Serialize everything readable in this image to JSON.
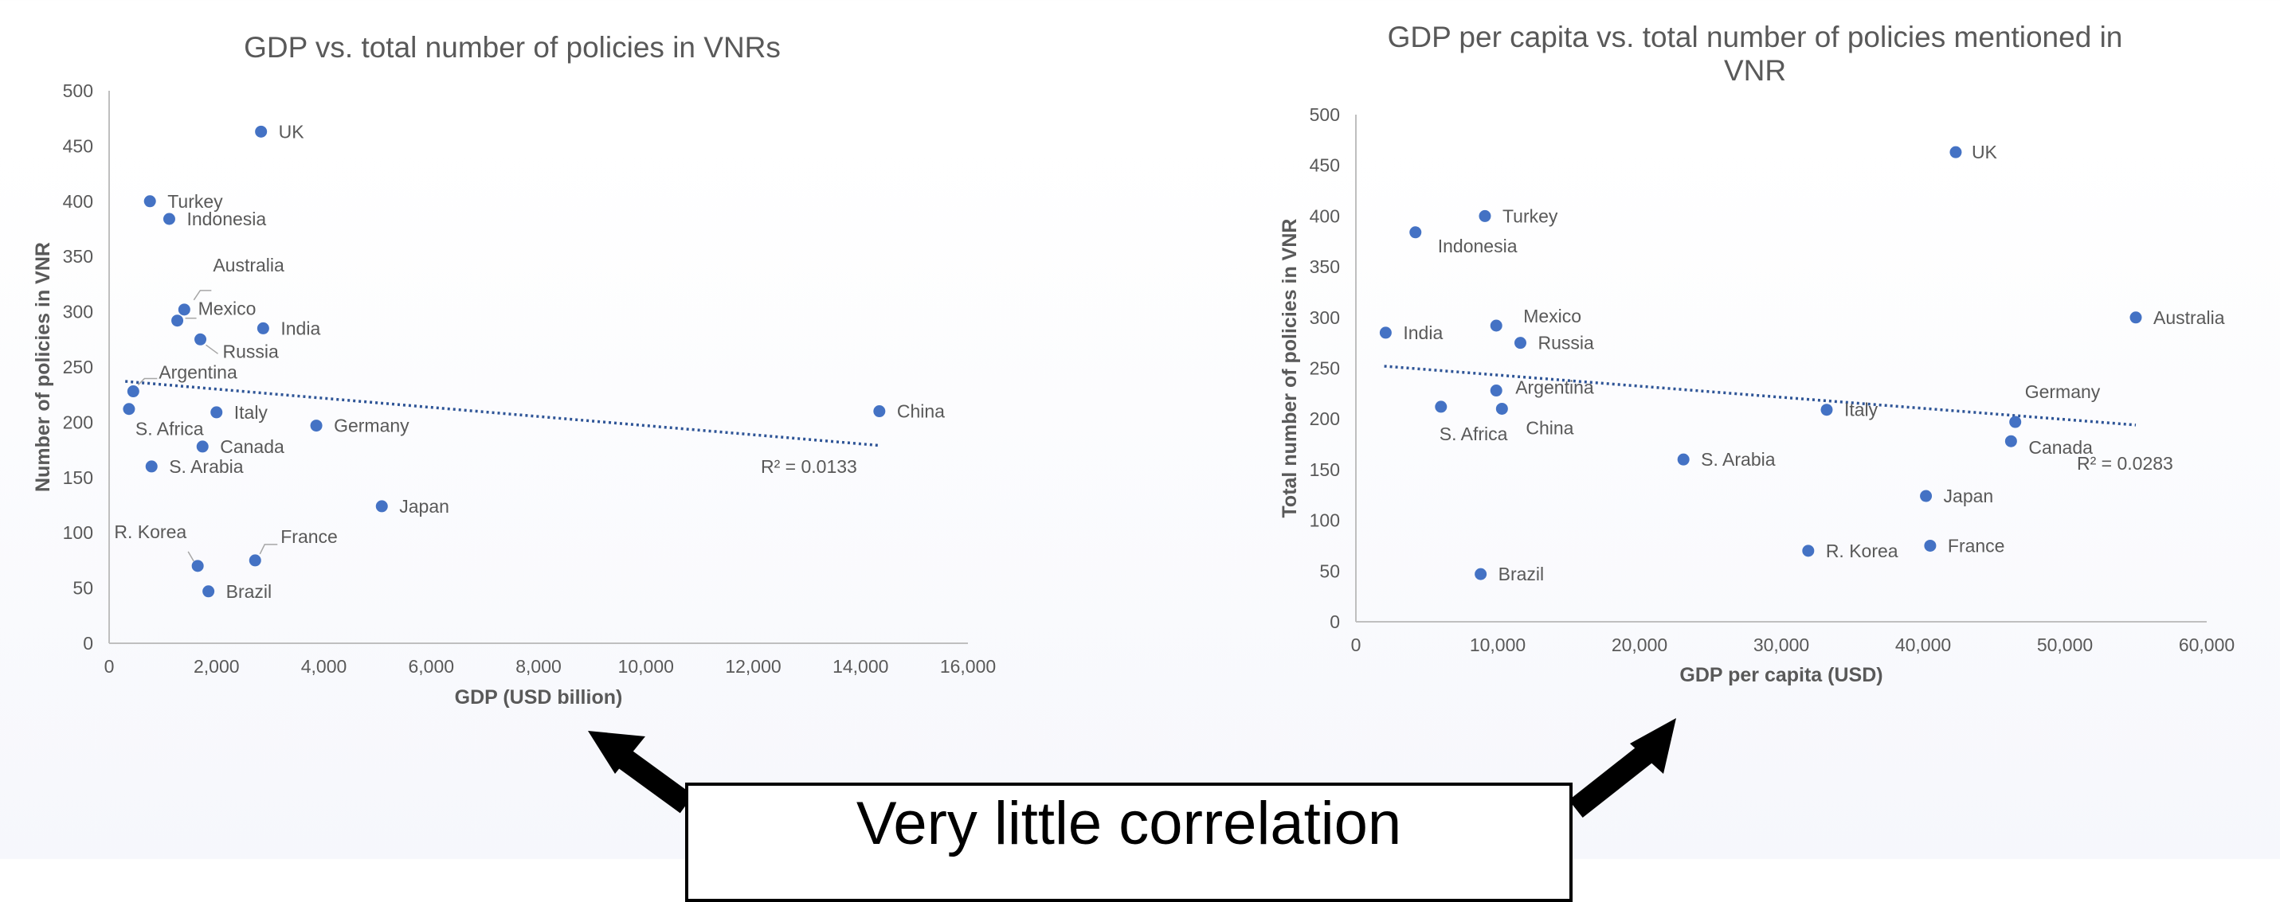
{
  "callout": {
    "text": "Very little correlation"
  },
  "colors": {
    "marker": "#4472C4",
    "trendline": "#2F5597",
    "text": "#595959",
    "axis": "#BFBFBF",
    "arrow": "#000000"
  },
  "chart_data": [
    {
      "type": "scatter",
      "title": "GDP vs. total number of policies in VNRs",
      "xlabel": "GDP (USD billion)",
      "ylabel": "Number of policies in VNR",
      "xlim": [
        0,
        16000
      ],
      "ylim": [
        0,
        500
      ],
      "xticks": [
        0,
        2000,
        4000,
        6000,
        8000,
        10000,
        12000,
        14000,
        16000
      ],
      "xtick_labels": [
        "0",
        "2,000",
        "4,000",
        "6,000",
        "8,000",
        "10,000",
        "12,000",
        "14,000",
        "16,000"
      ],
      "yticks": [
        0,
        50,
        100,
        150,
        200,
        250,
        300,
        350,
        400,
        450,
        500
      ],
      "ytick_labels": [
        "0",
        "50",
        "100",
        "150",
        "200",
        "250",
        "300",
        "350",
        "400",
        "450",
        "500"
      ],
      "grid": false,
      "legend": "none",
      "trendline": {
        "type": "linear",
        "x": [
          300,
          14350
        ],
        "y": [
          237,
          179
        ],
        "label": "R² = 0.0133",
        "style": "dotted"
      },
      "points": [
        {
          "label": "UK",
          "x": 2830,
          "y": 463
        },
        {
          "label": "Turkey",
          "x": 760,
          "y": 400
        },
        {
          "label": "Indonesia",
          "x": 1120,
          "y": 384
        },
        {
          "label": "Australia",
          "x": 1400,
          "y": 302
        },
        {
          "label": "Mexico",
          "x": 1270,
          "y": 292
        },
        {
          "label": "India",
          "x": 2870,
          "y": 285
        },
        {
          "label": "Russia",
          "x": 1700,
          "y": 275
        },
        {
          "label": "Argentina",
          "x": 450,
          "y": 228
        },
        {
          "label": "S. Africa",
          "x": 370,
          "y": 212
        },
        {
          "label": "Italy",
          "x": 2000,
          "y": 209
        },
        {
          "label": "Germany",
          "x": 3860,
          "y": 197
        },
        {
          "label": "Canada",
          "x": 1740,
          "y": 178
        },
        {
          "label": "S. Arabia",
          "x": 790,
          "y": 160
        },
        {
          "label": "Japan",
          "x": 5080,
          "y": 124
        },
        {
          "label": "R. Korea",
          "x": 1650,
          "y": 70
        },
        {
          "label": "France",
          "x": 2720,
          "y": 75
        },
        {
          "label": "Brazil",
          "x": 1850,
          "y": 47
        },
        {
          "label": "China",
          "x": 14350,
          "y": 210
        }
      ]
    },
    {
      "type": "scatter",
      "title": "GDP per capita vs. total number of policies mentioned in VNR",
      "title_lines": [
        "GDP per capita vs. total number of policies mentioned in",
        "VNR"
      ],
      "xlabel": "GDP per capita (USD)",
      "ylabel": "Total number of policies in VNR",
      "xlim": [
        0,
        60000
      ],
      "ylim": [
        0,
        500
      ],
      "xticks": [
        0,
        10000,
        20000,
        30000,
        40000,
        50000,
        60000
      ],
      "xtick_labels": [
        "0",
        "10,000",
        "20,000",
        "30,000",
        "40,000",
        "50,000",
        "60,000"
      ],
      "yticks": [
        0,
        50,
        100,
        150,
        200,
        250,
        300,
        350,
        400,
        450,
        500
      ],
      "ytick_labels": [
        "0",
        "50",
        "100",
        "150",
        "200",
        "250",
        "300",
        "350",
        "400",
        "450",
        "500"
      ],
      "grid": false,
      "legend": "none",
      "trendline": {
        "type": "linear",
        "x": [
          2000,
          55000
        ],
        "y": [
          252,
          194
        ],
        "label": "R² = 0.0283",
        "style": "dotted"
      },
      "points": [
        {
          "label": "UK",
          "x": 42300,
          "y": 463
        },
        {
          "label": "Turkey",
          "x": 9100,
          "y": 400
        },
        {
          "label": "Indonesia",
          "x": 4200,
          "y": 384
        },
        {
          "label": "Australia",
          "x": 55000,
          "y": 300
        },
        {
          "label": "India",
          "x": 2100,
          "y": 285
        },
        {
          "label": "Mexico",
          "x": 9900,
          "y": 292
        },
        {
          "label": "Russia",
          "x": 11600,
          "y": 275
        },
        {
          "label": "Argentina",
          "x": 9900,
          "y": 228
        },
        {
          "label": "S. Africa",
          "x": 6000,
          "y": 212
        },
        {
          "label": "China",
          "x": 10300,
          "y": 210
        },
        {
          "label": "Italy",
          "x": 33200,
          "y": 209
        },
        {
          "label": "Germany",
          "x": 46500,
          "y": 197
        },
        {
          "label": "Canada",
          "x": 46200,
          "y": 178
        },
        {
          "label": "S. Arabia",
          "x": 23100,
          "y": 160
        },
        {
          "label": "Japan",
          "x": 40200,
          "y": 124
        },
        {
          "label": "R. Korea",
          "x": 31900,
          "y": 70
        },
        {
          "label": "France",
          "x": 40500,
          "y": 75
        },
        {
          "label": "Brazil",
          "x": 8800,
          "y": 47
        }
      ]
    }
  ]
}
